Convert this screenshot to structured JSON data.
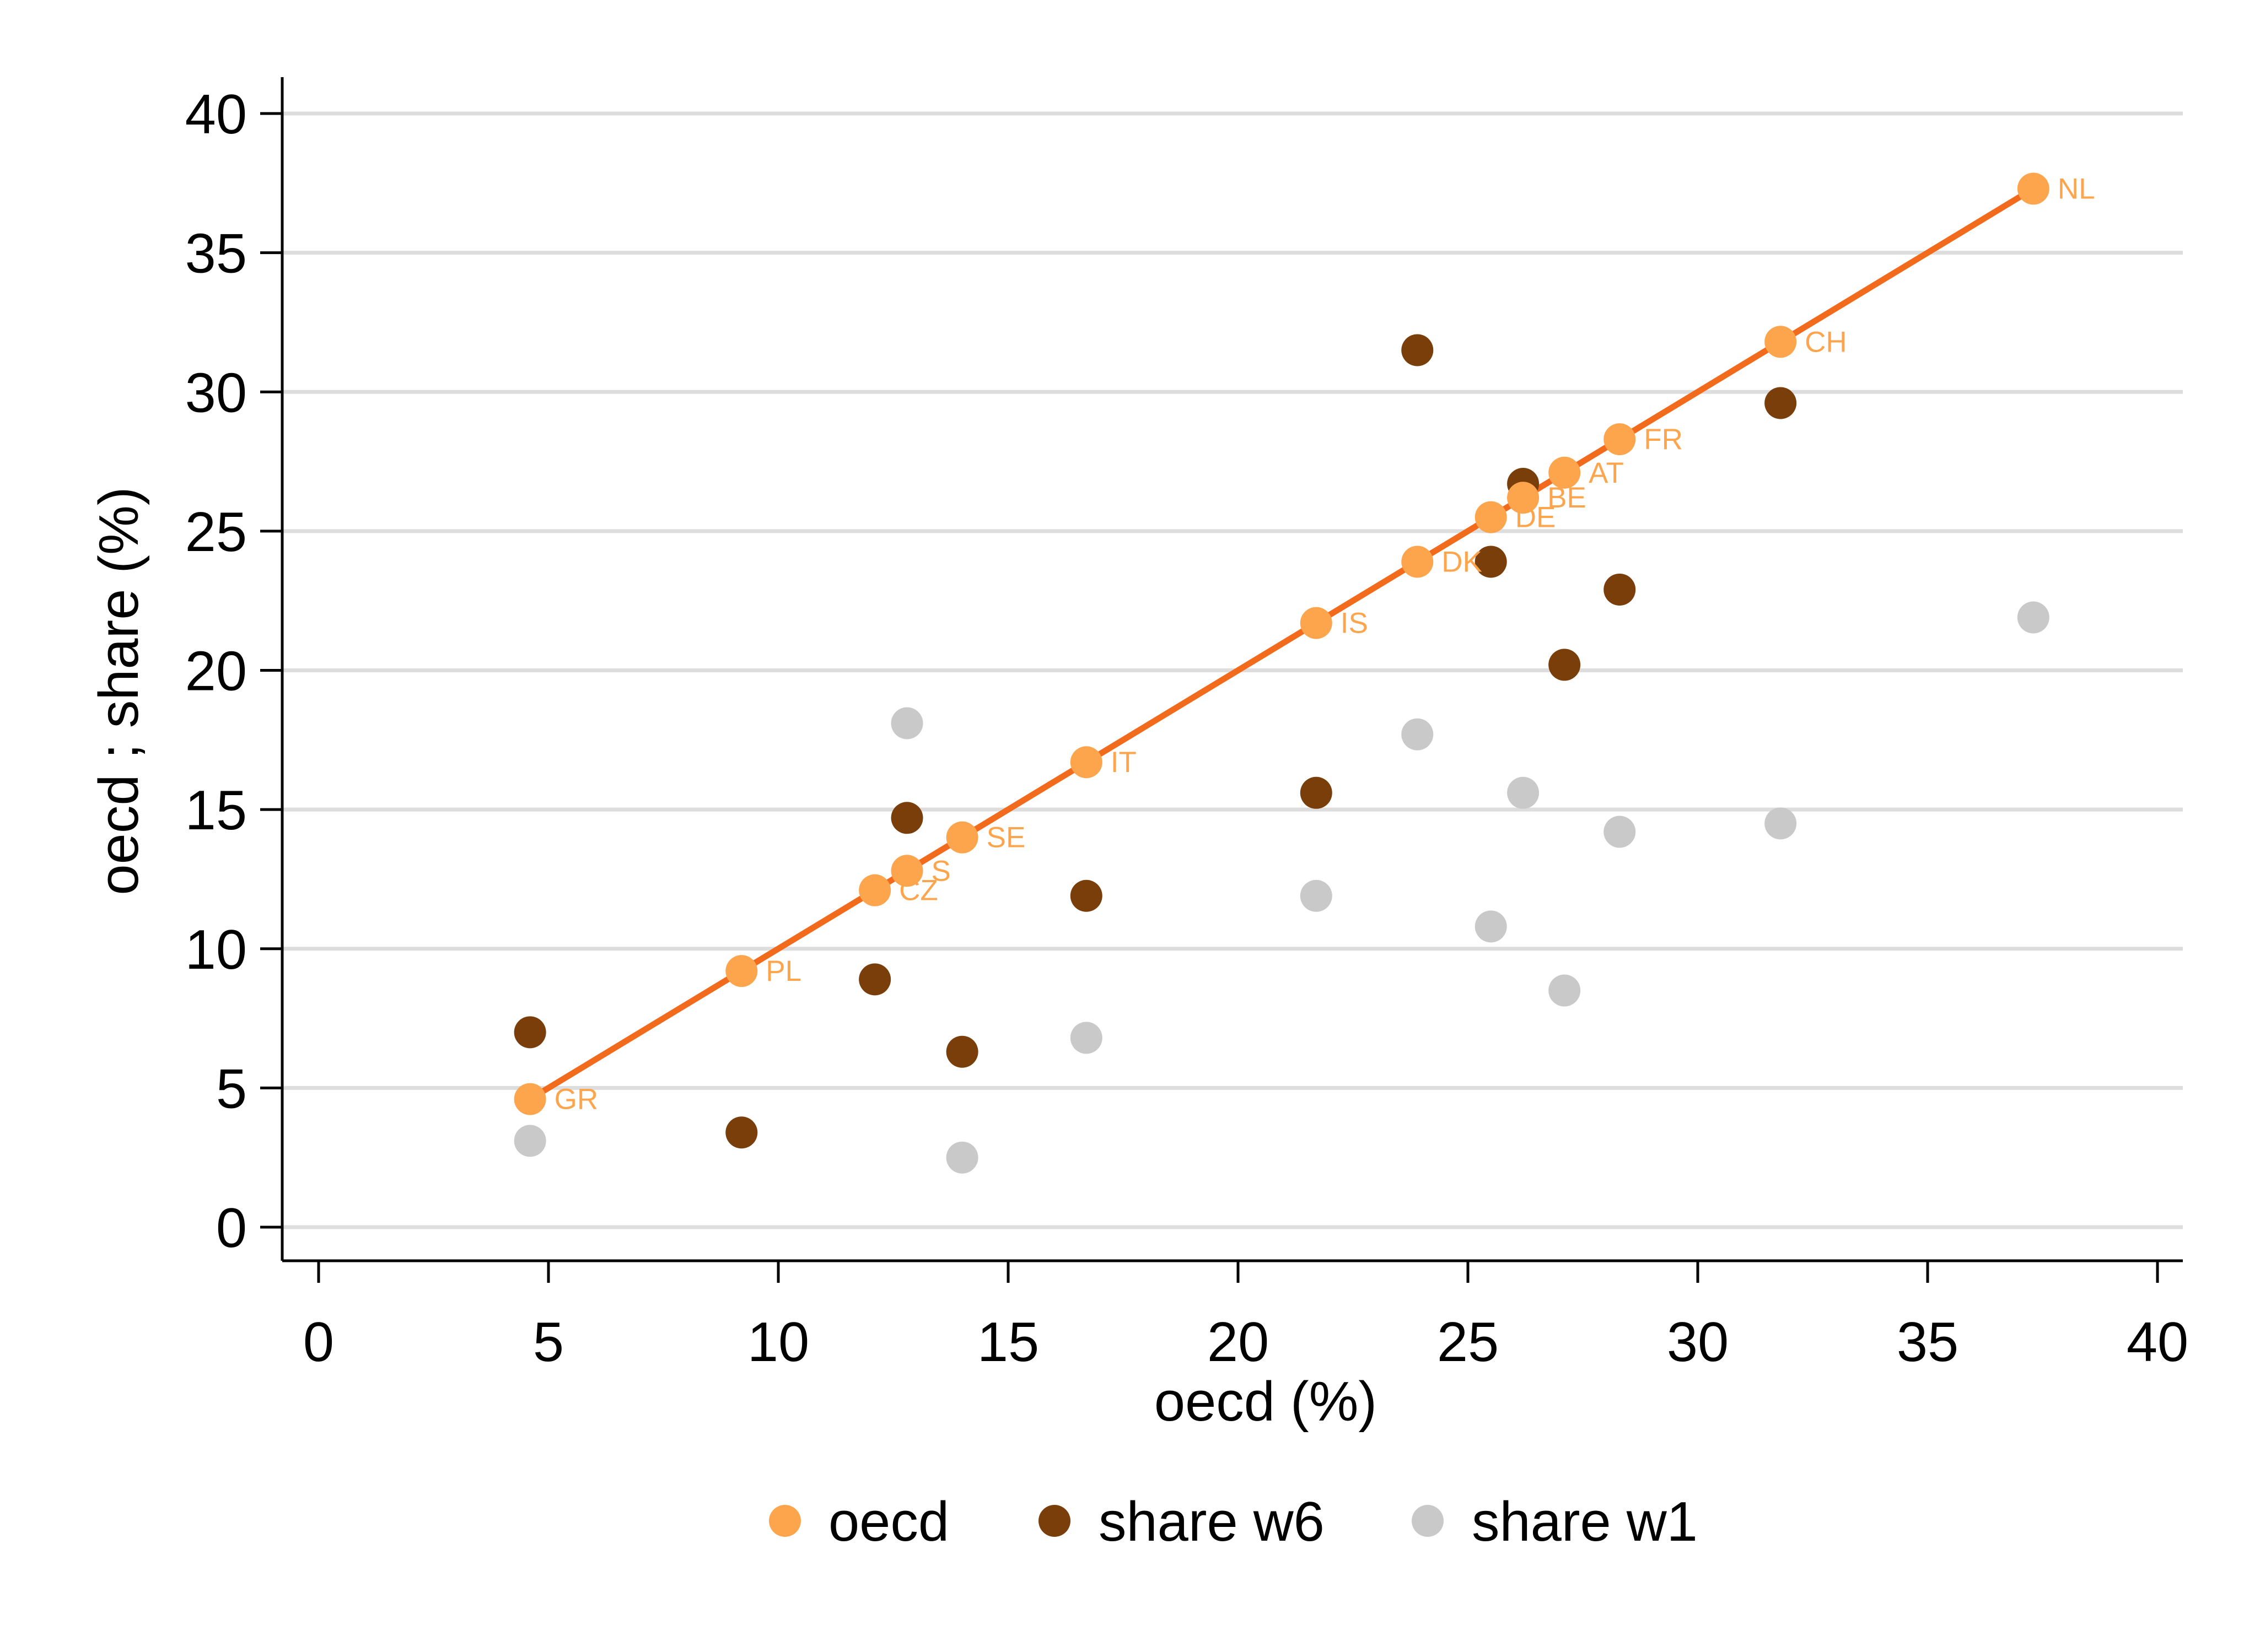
{
  "chart_data": {
    "type": "scatter",
    "xlabel": "oecd (%)",
    "ylabel": "oecd ; share (%)",
    "xlim": [
      0,
      40
    ],
    "ylim": [
      0,
      40
    ],
    "x_ticks": [
      0,
      5,
      10,
      15,
      20,
      25,
      30,
      35,
      40
    ],
    "y_ticks": [
      0,
      5,
      10,
      15,
      20,
      25,
      30,
      35,
      40
    ],
    "grid": "horizontal",
    "legend_position": "bottom",
    "colors": {
      "oecd": "#fda54d",
      "share_w6": "#7a3e0a",
      "share_w1": "#c9c9c9",
      "fit_line": "#f26b1d",
      "grid": "#dddddd",
      "axis": "#000000"
    },
    "series": [
      {
        "name": "oecd",
        "points": [
          {
            "label": "GR",
            "x": 4.6,
            "y": 4.6
          },
          {
            "label": "PL",
            "x": 9.2,
            "y": 9.2
          },
          {
            "label": "CZ",
            "x": 12.1,
            "y": 12.1
          },
          {
            "label": "S",
            "x": 12.8,
            "y": 12.8
          },
          {
            "label": "SE",
            "x": 14.0,
            "y": 14.0
          },
          {
            "label": "IT",
            "x": 16.7,
            "y": 16.7
          },
          {
            "label": "IS",
            "x": 21.7,
            "y": 21.7
          },
          {
            "label": "DK",
            "x": 23.9,
            "y": 23.9
          },
          {
            "label": "DE",
            "x": 25.5,
            "y": 25.5
          },
          {
            "label": "BE",
            "x": 26.2,
            "y": 26.2
          },
          {
            "label": "AT",
            "x": 27.1,
            "y": 27.1
          },
          {
            "label": "FR",
            "x": 28.3,
            "y": 28.3
          },
          {
            "label": "CH",
            "x": 31.8,
            "y": 31.8
          },
          {
            "label": "NL",
            "x": 37.3,
            "y": 37.3
          }
        ]
      },
      {
        "name": "share w6",
        "points": [
          {
            "x": 4.6,
            "y": 7.0
          },
          {
            "x": 9.2,
            "y": 3.4
          },
          {
            "x": 12.1,
            "y": 8.9
          },
          {
            "x": 12.8,
            "y": 14.7
          },
          {
            "x": 14.0,
            "y": 6.3
          },
          {
            "x": 16.7,
            "y": 11.9
          },
          {
            "x": 21.7,
            "y": 15.6
          },
          {
            "x": 23.9,
            "y": 31.5
          },
          {
            "x": 25.5,
            "y": 23.9
          },
          {
            "x": 26.2,
            "y": 26.7
          },
          {
            "x": 27.1,
            "y": 20.2
          },
          {
            "x": 28.3,
            "y": 22.9
          },
          {
            "x": 31.8,
            "y": 29.6
          }
        ]
      },
      {
        "name": "share w1",
        "points": [
          {
            "x": 4.6,
            "y": 3.1
          },
          {
            "x": 12.8,
            "y": 18.1
          },
          {
            "x": 14.0,
            "y": 2.5
          },
          {
            "x": 16.7,
            "y": 6.8
          },
          {
            "x": 21.7,
            "y": 11.9
          },
          {
            "x": 23.9,
            "y": 17.7
          },
          {
            "x": 25.5,
            "y": 10.8
          },
          {
            "x": 26.2,
            "y": 15.6
          },
          {
            "x": 27.1,
            "y": 8.5
          },
          {
            "x": 28.3,
            "y": 14.2
          },
          {
            "x": 31.8,
            "y": 14.5
          },
          {
            "x": 37.3,
            "y": 21.9
          }
        ]
      }
    ],
    "fit_line": {
      "x": [
        4.6,
        37.3
      ],
      "y": [
        4.6,
        37.3
      ]
    }
  }
}
